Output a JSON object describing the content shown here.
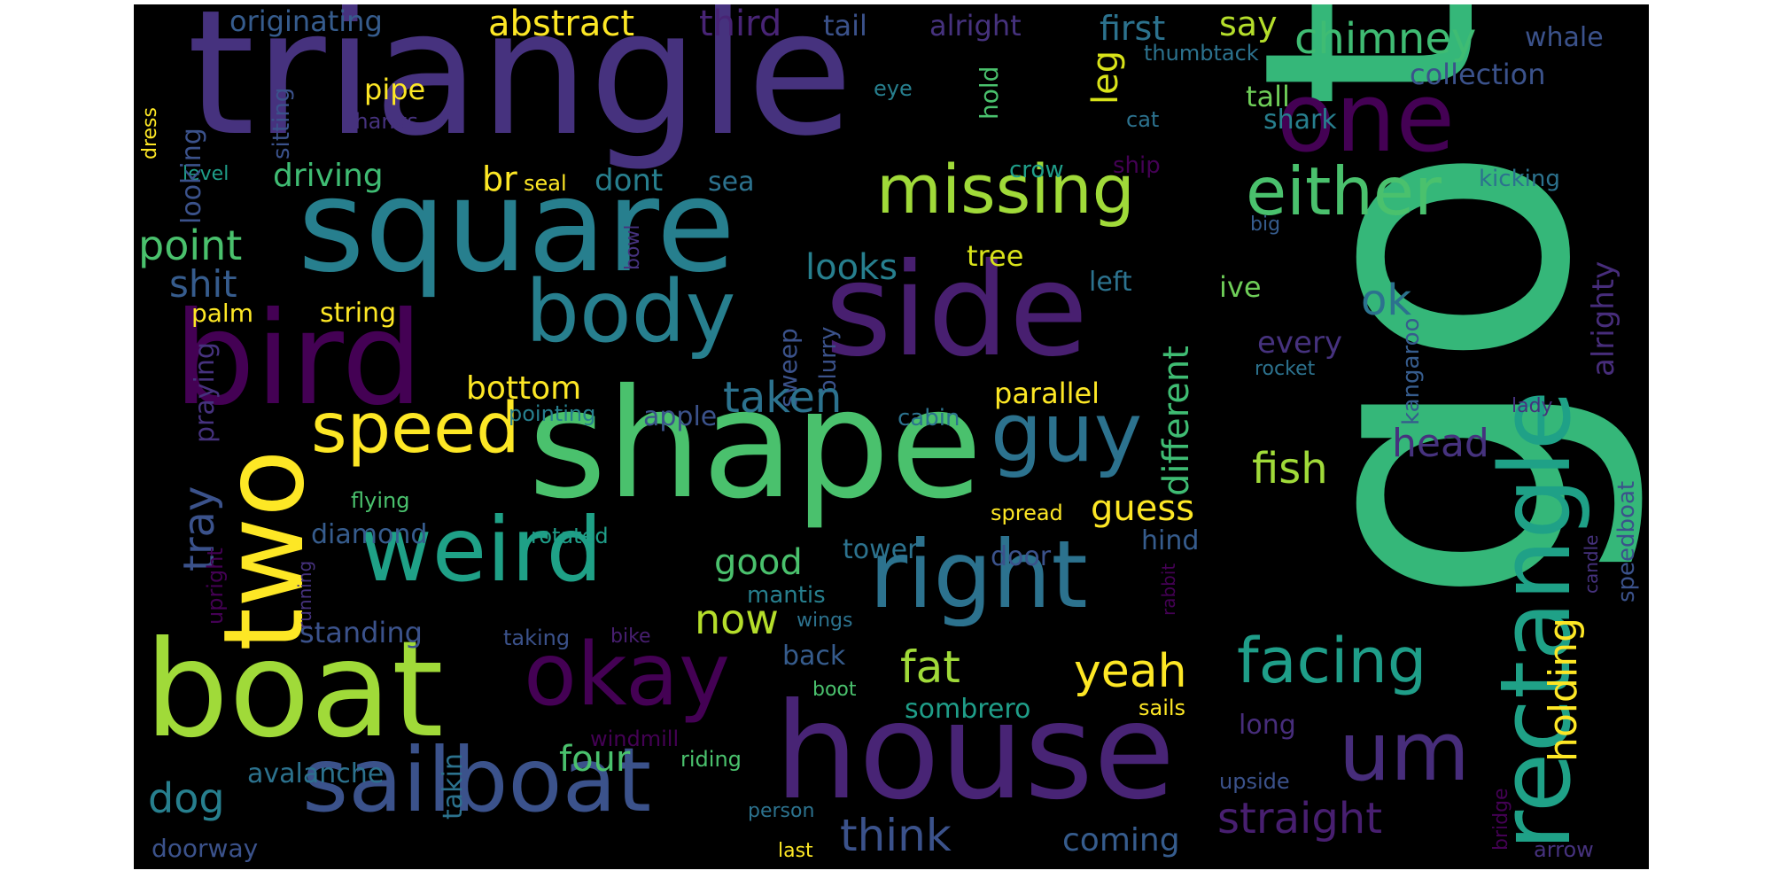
{
  "image_kind": "word cloud",
  "background": "#000000",
  "palette": [
    "#440154",
    "#46327e",
    "#365c8d",
    "#277f8e",
    "#1fa187",
    "#4ac16d",
    "#a0da39",
    "#fde725"
  ],
  "words": [
    {
      "text": "triangle",
      "color": "#46327e"
    },
    {
      "text": "go",
      "color": "#35b779"
    },
    {
      "text": "to",
      "color": "#35b779"
    },
    {
      "text": "square",
      "color": "#277f8e"
    },
    {
      "text": "bird",
      "color": "#440154"
    },
    {
      "text": "shape",
      "color": "#4ac16d"
    },
    {
      "text": "side",
      "color": "#481f70"
    },
    {
      "text": "boat",
      "color": "#a0da39"
    },
    {
      "text": "house",
      "color": "#482475"
    },
    {
      "text": "two",
      "color": "#fde725"
    },
    {
      "text": "weird",
      "color": "#1fa187"
    },
    {
      "text": "right",
      "color": "#2c728e"
    },
    {
      "text": "okay",
      "color": "#440154"
    },
    {
      "text": "sailboat",
      "color": "#3b528b"
    },
    {
      "text": "one",
      "color": "#440154"
    },
    {
      "text": "rectangle",
      "color": "#1fa187"
    },
    {
      "text": "missing",
      "color": "#a0da39"
    },
    {
      "text": "either",
      "color": "#4ac16d"
    },
    {
      "text": "body",
      "color": "#277f8e"
    },
    {
      "text": "guy",
      "color": "#2c728e"
    },
    {
      "text": "um",
      "color": "#472d7b"
    },
    {
      "text": "speed",
      "color": "#fde725"
    },
    {
      "text": "facing",
      "color": "#1f9e89"
    },
    {
      "text": "chimney",
      "color": "#3fbc73"
    },
    {
      "text": "abstract",
      "color": "#fde725"
    },
    {
      "text": "third",
      "color": "#482475"
    },
    {
      "text": "first",
      "color": "#2c728e"
    },
    {
      "text": "originating",
      "color": "#365c8d"
    },
    {
      "text": "tail",
      "color": "#3b528b"
    },
    {
      "text": "alright",
      "color": "#46327e"
    },
    {
      "text": "say",
      "color": "#b5de2b"
    },
    {
      "text": "whale",
      "color": "#3b528b"
    },
    {
      "text": "thumbtack",
      "color": "#2c728e"
    },
    {
      "text": "collection",
      "color": "#3b528b"
    },
    {
      "text": "pipe",
      "color": "#fde725"
    },
    {
      "text": "leg",
      "color": "#d8e219"
    },
    {
      "text": "tall",
      "color": "#6ece58"
    },
    {
      "text": "shark",
      "color": "#277f8e"
    },
    {
      "text": "thanks",
      "color": "#46327e"
    },
    {
      "text": "dress",
      "color": "#fde725"
    },
    {
      "text": "sitting",
      "color": "#3b528b"
    },
    {
      "text": "eye",
      "color": "#277f8e"
    },
    {
      "text": "hold",
      "color": "#4ac16d"
    },
    {
      "text": "cat",
      "color": "#2c728e"
    },
    {
      "text": "driving",
      "color": "#3fbc73"
    },
    {
      "text": "br",
      "color": "#fde725"
    },
    {
      "text": "seal",
      "color": "#fde725"
    },
    {
      "text": "dont",
      "color": "#277f8e"
    },
    {
      "text": "sea",
      "color": "#2c728e"
    },
    {
      "text": "level",
      "color": "#1f9e89"
    },
    {
      "text": "crow",
      "color": "#1f9e89"
    },
    {
      "text": "ship",
      "color": "#440154"
    },
    {
      "text": "kicking",
      "color": "#2c728e"
    },
    {
      "text": "looking",
      "color": "#3b528b"
    },
    {
      "text": "point",
      "color": "#4ac16d"
    },
    {
      "text": "shit",
      "color": "#365c8d"
    },
    {
      "text": "looks",
      "color": "#277f8e"
    },
    {
      "text": "tree",
      "color": "#d8e219"
    },
    {
      "text": "ive",
      "color": "#6ece58"
    },
    {
      "text": "big",
      "color": "#365c8d"
    },
    {
      "text": "alrighty",
      "color": "#472d7b"
    },
    {
      "text": "bowl",
      "color": "#46327e"
    },
    {
      "text": "left",
      "color": "#2c728e"
    },
    {
      "text": "different",
      "color": "#3fbc73"
    },
    {
      "text": "ok",
      "color": "#2c728e"
    },
    {
      "text": "palm",
      "color": "#fde725"
    },
    {
      "text": "string",
      "color": "#fde725"
    },
    {
      "text": "kangaroo",
      "color": "#365c8d"
    },
    {
      "text": "every",
      "color": "#46327e"
    },
    {
      "text": "rocket",
      "color": "#2c728e"
    },
    {
      "text": "praying",
      "color": "#46327e"
    },
    {
      "text": "sweep",
      "color": "#3b528b"
    },
    {
      "text": "blurry",
      "color": "#3b528b"
    },
    {
      "text": "bottom",
      "color": "#fde725"
    },
    {
      "text": "taken",
      "color": "#2c728e"
    },
    {
      "text": "parallel",
      "color": "#fde725"
    },
    {
      "text": "lady",
      "color": "#46327e"
    },
    {
      "text": "pointing",
      "color": "#277f8e"
    },
    {
      "text": "apple",
      "color": "#3b528b"
    },
    {
      "text": "cabin",
      "color": "#2c728e"
    },
    {
      "text": "head",
      "color": "#46327e"
    },
    {
      "text": "fish",
      "color": "#a0da39"
    },
    {
      "text": "tray",
      "color": "#3b528b"
    },
    {
      "text": "flying",
      "color": "#4ac16d"
    },
    {
      "text": "guess",
      "color": "#fde725"
    },
    {
      "text": "spread",
      "color": "#fde725"
    },
    {
      "text": "candle",
      "color": "#46327e"
    },
    {
      "text": "speedboat",
      "color": "#3b528b"
    },
    {
      "text": "diamond",
      "color": "#365c8d"
    },
    {
      "text": "rotated",
      "color": "#1f9e89"
    },
    {
      "text": "hind",
      "color": "#365c8d"
    },
    {
      "text": "upright",
      "color": "#440154"
    },
    {
      "text": "running",
      "color": "#46327e"
    },
    {
      "text": "good",
      "color": "#4ac16d"
    },
    {
      "text": "tower",
      "color": "#2c728e"
    },
    {
      "text": "door",
      "color": "#3b528b"
    },
    {
      "text": "rabbit",
      "color": "#440154"
    },
    {
      "text": "mantis",
      "color": "#277f8e"
    },
    {
      "text": "holding",
      "color": "#fde725"
    },
    {
      "text": "now",
      "color": "#b5de2b"
    },
    {
      "text": "wings",
      "color": "#2c728e"
    },
    {
      "text": "standing",
      "color": "#3b528b"
    },
    {
      "text": "taking",
      "color": "#3b528b"
    },
    {
      "text": "bike",
      "color": "#481f70"
    },
    {
      "text": "fat",
      "color": "#a0da39"
    },
    {
      "text": "yeah",
      "color": "#fde725"
    },
    {
      "text": "back",
      "color": "#365c8d"
    },
    {
      "text": "boot",
      "color": "#4ac16d"
    },
    {
      "text": "sombrero",
      "color": "#1f9e89"
    },
    {
      "text": "sails",
      "color": "#fde725"
    },
    {
      "text": "windmill",
      "color": "#440154"
    },
    {
      "text": "long",
      "color": "#472d7b"
    },
    {
      "text": "four",
      "color": "#4ac16d"
    },
    {
      "text": "riding",
      "color": "#4ac16d"
    },
    {
      "text": "avalanche",
      "color": "#2c728e"
    },
    {
      "text": "dog",
      "color": "#277f8e"
    },
    {
      "text": "takin",
      "color": "#2c728e"
    },
    {
      "text": "upside",
      "color": "#3b528b"
    },
    {
      "text": "bridge",
      "color": "#440154"
    },
    {
      "text": "straight",
      "color": "#481f70"
    },
    {
      "text": "person",
      "color": "#2c728e"
    },
    {
      "text": "think",
      "color": "#3b528b"
    },
    {
      "text": "coming",
      "color": "#365c8d"
    },
    {
      "text": "doorway",
      "color": "#3b528b"
    },
    {
      "text": "last",
      "color": "#fde725"
    },
    {
      "text": "arrow",
      "color": "#46327e"
    }
  ]
}
